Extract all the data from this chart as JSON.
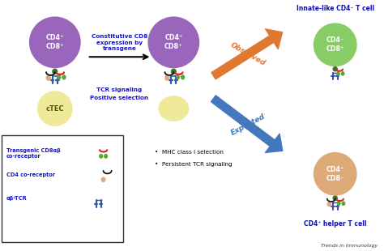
{
  "bg_color": "#ffffff",
  "blue_label_color": "#1515CC",
  "dark_blue_color": "#1010AA",
  "orange_arrow_color": "#E07830",
  "light_blue_arrow_color": "#4477BB",
  "cell1_color": "#9966BB",
  "ctec_color": "#EEEA99",
  "cell2_color": "#9966BB",
  "innate_cell_color": "#88CC66",
  "helper_cell_color": "#DDAA77",
  "tcr_color": "#3355AA",
  "cd8_green_color": "#55AA33",
  "cd4_tan_color": "#DDAA88",
  "red_line_color": "#DD2222",
  "black_line_color": "#111111",
  "dark_green_color": "#337722",
  "constitutive_text": "Constitutive CD8\nexpression by\ntransgene",
  "tcr_signaling_text": "TCR signaling",
  "positive_selection_text": "Positive selection",
  "observed_text": "Observed",
  "expected_text": "Expected",
  "innate_title": "Innate-like CD4⁻ T cell",
  "helper_title": "CD4⁺ helper T cell",
  "legend_cd8_text": "Transgenic CD8αβ\nco-receptor",
  "legend_cd4_text": "CD4 co-receptor",
  "legend_tcr_text": "αβ-TCR",
  "mhc_text": "MHC class I selection",
  "persistent_text": "Persistent TCR signaling",
  "trends_text": "Trends in Immunology",
  "cell1_label": "CD4⁺\nCD8⁺",
  "cell2_label": "CD4⁺\nCD8⁺",
  "innate_label": "CD4⁻\nCD8⁺",
  "helper_label": "CD4⁺\nCD8⁻",
  "ctec_label": "cTEC"
}
